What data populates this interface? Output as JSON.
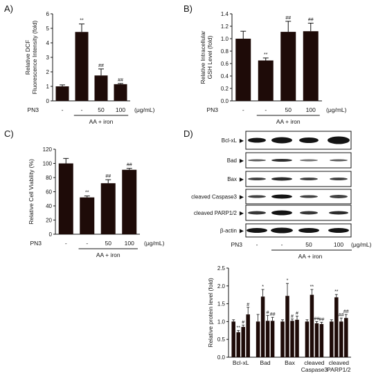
{
  "colors": {
    "bar": "#1e0b08",
    "axis": "#111111",
    "band": "#141414"
  },
  "panel_letters": [
    "A)",
    "B)",
    "C)",
    "D)"
  ],
  "treatment": {
    "prefix": "PN3",
    "doses": [
      "-",
      "-",
      "50",
      "100"
    ],
    "unit": "(μg/mL)",
    "group": "AA + iron"
  },
  "chart_data": [
    {
      "panel": "A)",
      "type": "bar",
      "ylabel": [
        "Relative DCF",
        "Fluorescence Intensity (fold)"
      ],
      "ylim": [
        0,
        6
      ],
      "yticks": [
        0,
        1,
        2,
        3,
        4,
        5,
        6
      ],
      "values": [
        1.0,
        4.75,
        1.75,
        1.15
      ],
      "errors": [
        0.1,
        0.55,
        0.45,
        0.05
      ],
      "annotations": [
        "",
        "**",
        "##",
        "##"
      ]
    },
    {
      "panel": "B)",
      "type": "bar",
      "ylabel": [
        "Relative Intracellular",
        "GSH Level (fold)"
      ],
      "ylim": [
        0,
        1.4
      ],
      "yticks": [
        0.0,
        0.2,
        0.4,
        0.6,
        0.8,
        1.0,
        1.2,
        1.4
      ],
      "tick_decimals": 1,
      "values": [
        1.0,
        0.65,
        1.11,
        1.12
      ],
      "errors": [
        0.12,
        0.04,
        0.17,
        0.13
      ],
      "annotations": [
        "",
        "**",
        "##",
        "##"
      ]
    },
    {
      "panel": "C)",
      "type": "bar",
      "ylabel": [
        "Relative Cell Viability (%)"
      ],
      "ylim": [
        0,
        120
      ],
      "yticks": [
        0,
        20,
        40,
        60,
        80,
        100,
        120
      ],
      "values": [
        100,
        52,
        72,
        91
      ],
      "errors": [
        7,
        2,
        5,
        2
      ],
      "annotations": [
        "",
        "**",
        "##",
        "##"
      ]
    },
    {
      "panel": "D)",
      "type": "bar",
      "ylabel": [
        "Relative protein level (fold)"
      ],
      "ylim": [
        0,
        2.5
      ],
      "yticks": [
        0.0,
        0.5,
        1.0,
        1.5,
        2.0,
        2.5
      ],
      "tick_decimals": 1,
      "categories": [
        [
          "Bcl-xL"
        ],
        [
          "Bad"
        ],
        [
          "Bax"
        ],
        [
          "cleaved",
          "Caspase3"
        ],
        [
          "cleaved",
          "PARP1/2"
        ]
      ],
      "groups": [
        {
          "values": [
            1.0,
            0.7,
            0.85,
            1.2
          ],
          "errors": [
            0.05,
            0.05,
            0.05,
            0.2
          ],
          "annotations": [
            "",
            "**",
            "#",
            "#"
          ]
        },
        {
          "values": [
            1.0,
            1.7,
            1.02,
            1.02
          ],
          "errors": [
            0.2,
            0.2,
            0.15,
            0.1
          ],
          "annotations": [
            "",
            "*",
            "#",
            "##"
          ]
        },
        {
          "values": [
            1.0,
            1.72,
            1.02,
            1.05
          ],
          "errors": [
            0.05,
            0.35,
            0.05,
            0.1
          ],
          "annotations": [
            "",
            "*",
            "#",
            "#"
          ]
        },
        {
          "values": [
            1.0,
            1.75,
            0.95,
            0.93
          ],
          "errors": [
            0.05,
            0.15,
            0.05,
            0.05
          ],
          "annotations": [
            "",
            "**",
            "##",
            "##"
          ]
        },
        {
          "values": [
            1.0,
            1.68,
            1.0,
            1.1
          ],
          "errors": [
            0.05,
            0.08,
            0.1,
            0.1
          ],
          "annotations": [
            "",
            "**",
            "##",
            "##"
          ]
        }
      ]
    }
  ],
  "western_blot": {
    "bands": [
      "Bcl-xL",
      "Bad",
      "Bax",
      "cleaved Caspase3",
      "cleaved PARP1/2",
      "β-actin"
    ],
    "arrow": "▶"
  }
}
